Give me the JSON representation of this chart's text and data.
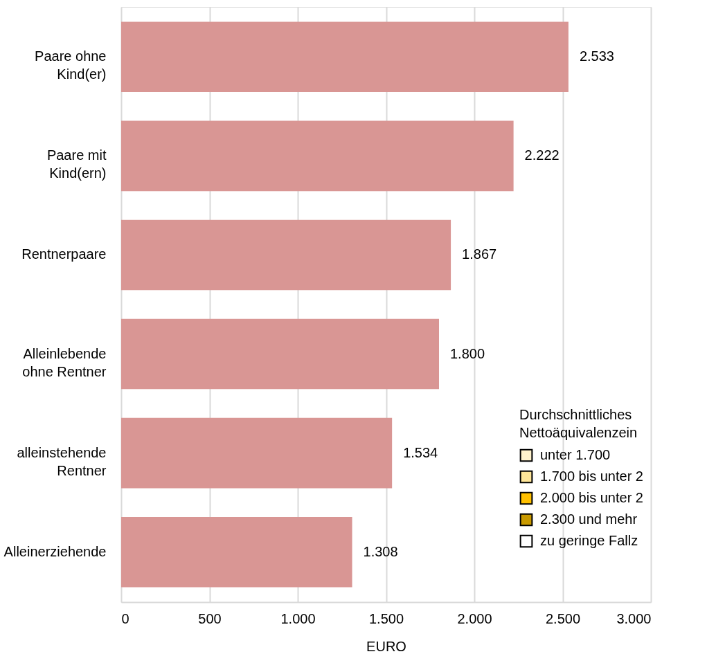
{
  "chart_data": {
    "type": "bar",
    "orientation": "horizontal",
    "xlabel": "EURO",
    "categories": [
      "Paare ohne\nKind(er)",
      "Paare mit\nKind(ern)",
      "Rentnerpaare",
      "Alleinlebende\nohne Rentner",
      "alleinstehende\nRentner",
      "Alleinerziehende"
    ],
    "series": [
      {
        "color": "#d99694",
        "values": [
          2533,
          2222,
          1867,
          1800,
          1534,
          1308
        ],
        "value_labels": [
          "2.533",
          "2.222",
          "1.867",
          "1.800",
          "1.534",
          "1.308"
        ]
      },
      {
        "name": "unter 1.700",
        "color": "#fff2cc",
        "values": [
          null,
          null,
          null,
          null,
          null,
          null
        ]
      },
      {
        "name": "1.700 bis unter 2",
        "color": "#ffe699",
        "values": [
          null,
          null,
          null,
          null,
          null,
          null
        ]
      },
      {
        "name": "2.000 bis unter 2",
        "color": "#ffc000",
        "values": [
          null,
          null,
          null,
          null,
          null,
          null
        ]
      },
      {
        "name": "2.300 und mehr",
        "color": "#c99a00",
        "values": [
          null,
          null,
          null,
          null,
          null,
          null
        ]
      },
      {
        "name": "zu geringe Fallz",
        "color": "#ffffff",
        "values": [
          null,
          null,
          null,
          null,
          null,
          null
        ]
      }
    ],
    "legend_title": "Durchschnittliches\nNettoäquivalenzein",
    "legend": "bottom right",
    "xlim": [
      0,
      3000
    ],
    "xticks": [
      0,
      500,
      {
        "value": 1000,
        "label": "1.000"
      },
      {
        "value": 1500,
        "label": "1.500"
      },
      {
        "value": 2000,
        "label": "2.000"
      },
      {
        "value": 2500,
        "label": "2.500"
      },
      {
        "value": 3000,
        "label": "3.000"
      }
    ],
    "grid": "x"
  }
}
